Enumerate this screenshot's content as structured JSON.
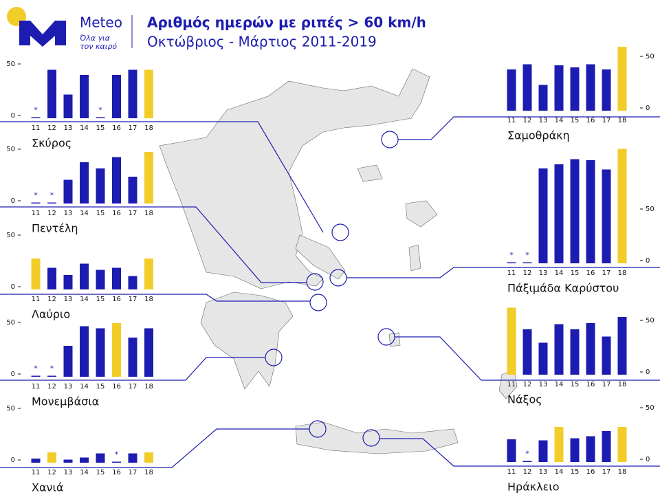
{
  "header": {
    "brand": "Meteo",
    "tagline": [
      "Όλα για",
      "τον καιρό"
    ],
    "title": "Αριθμός ημερών με ριπές > 60 km/h",
    "subtitle": "Οκτώβριος - Μάρτιος  2011-2019"
  },
  "chart_data": [
    {
      "type": "bar",
      "title": "Σκύρος",
      "categories": [
        "11",
        "12",
        "13",
        "14",
        "15",
        "16",
        "17",
        "18"
      ],
      "values": [
        1,
        47,
        23,
        42,
        1,
        42,
        47,
        47
      ],
      "colors": [
        "#1c1cb0",
        "#1c1cb0",
        "#1c1cb0",
        "#1c1cb0",
        "#1c1cb0",
        "#1c1cb0",
        "#1c1cb0",
        "#f2cd2a"
      ],
      "flags": [
        "*",
        null,
        null,
        null,
        "*",
        null,
        null,
        null
      ],
      "ylim": [
        0,
        65
      ],
      "yticks": [
        0,
        50
      ]
    },
    {
      "type": "bar",
      "title": "Πεντέλη",
      "categories": [
        "11",
        "12",
        "13",
        "14",
        "15",
        "16",
        "17",
        "18"
      ],
      "values": [
        1,
        1,
        23,
        40,
        34,
        45,
        26,
        50
      ],
      "colors": [
        "#1c1cb0",
        "#1c1cb0",
        "#1c1cb0",
        "#1c1cb0",
        "#1c1cb0",
        "#1c1cb0",
        "#1c1cb0",
        "#f2cd2a"
      ],
      "flags": [
        "*",
        "*",
        null,
        null,
        null,
        null,
        null,
        null
      ],
      "ylim": [
        0,
        65
      ],
      "yticks": [
        0,
        50
      ]
    },
    {
      "type": "bar",
      "title": "Λαύριο",
      "categories": [
        "11",
        "12",
        "13",
        "14",
        "15",
        "16",
        "17",
        "18"
      ],
      "values": [
        30,
        21,
        14,
        25,
        19,
        21,
        13,
        30
      ],
      "colors": [
        "#f2cd2a",
        "#1c1cb0",
        "#1c1cb0",
        "#1c1cb0",
        "#1c1cb0",
        "#1c1cb0",
        "#1c1cb0",
        "#f2cd2a"
      ],
      "flags": [
        null,
        null,
        null,
        null,
        null,
        null,
        null,
        null
      ],
      "ylim": [
        0,
        65
      ],
      "yticks": [
        0,
        50
      ]
    },
    {
      "type": "bar",
      "title": "Μονεμβάσια",
      "categories": [
        "11",
        "12",
        "13",
        "14",
        "15",
        "16",
        "17",
        "18"
      ],
      "values": [
        1,
        1,
        30,
        49,
        47,
        52,
        38,
        47
      ],
      "colors": [
        "#1c1cb0",
        "#1c1cb0",
        "#1c1cb0",
        "#1c1cb0",
        "#1c1cb0",
        "#f2cd2a",
        "#1c1cb0",
        "#1c1cb0"
      ],
      "flags": [
        "*",
        "*",
        null,
        null,
        null,
        null,
        null,
        null
      ],
      "ylim": [
        0,
        65
      ],
      "yticks": [
        0,
        50
      ]
    },
    {
      "type": "bar",
      "title": "Χανιά",
      "categories": [
        "11",
        "12",
        "13",
        "14",
        "15",
        "16",
        "17",
        "18"
      ],
      "values": [
        4,
        10,
        3,
        5,
        9,
        1,
        9,
        10
      ],
      "colors": [
        "#1c1cb0",
        "#f2cd2a",
        "#1c1cb0",
        "#1c1cb0",
        "#1c1cb0",
        "#1c1cb0",
        "#1c1cb0",
        "#f2cd2a"
      ],
      "flags": [
        null,
        null,
        null,
        null,
        null,
        "*",
        null,
        null
      ],
      "ylim": [
        0,
        65
      ],
      "yticks": [
        0,
        50
      ]
    },
    {
      "type": "bar",
      "title": "Σαμοθράκη",
      "categories": [
        "11",
        "12",
        "13",
        "14",
        "15",
        "16",
        "17",
        "18"
      ],
      "values": [
        40,
        45,
        25,
        44,
        42,
        45,
        40,
        62
      ],
      "colors": [
        "#1c1cb0",
        "#1c1cb0",
        "#1c1cb0",
        "#1c1cb0",
        "#1c1cb0",
        "#1c1cb0",
        "#1c1cb0",
        "#f2cd2a"
      ],
      "flags": [
        null,
        null,
        null,
        null,
        null,
        null,
        null,
        null
      ],
      "ylim": [
        0,
        65
      ],
      "yticks": [
        0,
        50
      ]
    },
    {
      "type": "bar",
      "title": "Πάξιμάδα Καρύστου",
      "categories": [
        "11",
        "12",
        "13",
        "14",
        "15",
        "16",
        "17",
        "18"
      ],
      "values": [
        1,
        1,
        92,
        96,
        101,
        100,
        91,
        111
      ],
      "colors": [
        "#1c1cb0",
        "#1c1cb0",
        "#1c1cb0",
        "#1c1cb0",
        "#1c1cb0",
        "#1c1cb0",
        "#1c1cb0",
        "#f2cd2a"
      ],
      "flags": [
        "*",
        "*",
        null,
        null,
        null,
        null,
        null,
        null
      ],
      "ylim": [
        0,
        115
      ],
      "yticks": [
        0,
        50
      ]
    },
    {
      "type": "bar",
      "title": "Νάξος",
      "categories": [
        "11",
        "12",
        "13",
        "14",
        "15",
        "16",
        "17",
        "18"
      ],
      "values": [
        65,
        44,
        31,
        49,
        44,
        50,
        37,
        56
      ],
      "colors": [
        "#f2cd2a",
        "#1c1cb0",
        "#1c1cb0",
        "#1c1cb0",
        "#1c1cb0",
        "#1c1cb0",
        "#1c1cb0",
        "#1c1cb0"
      ],
      "flags": [
        null,
        null,
        null,
        null,
        null,
        null,
        null,
        null
      ],
      "ylim": [
        0,
        65
      ],
      "yticks": [
        0,
        50
      ]
    },
    {
      "type": "bar",
      "title": "Ηράκλειο",
      "categories": [
        "11",
        "12",
        "13",
        "14",
        "15",
        "16",
        "17",
        "18"
      ],
      "values": [
        22,
        1,
        21,
        34,
        23,
        25,
        30,
        34
      ],
      "colors": [
        "#1c1cb0",
        "#1c1cb0",
        "#1c1cb0",
        "#f2cd2a",
        "#1c1cb0",
        "#1c1cb0",
        "#1c1cb0",
        "#f2cd2a"
      ],
      "flags": [
        null,
        "*",
        null,
        null,
        null,
        null,
        null,
        null
      ],
      "ylim": [
        0,
        65
      ],
      "yticks": [
        0,
        50
      ]
    }
  ]
}
